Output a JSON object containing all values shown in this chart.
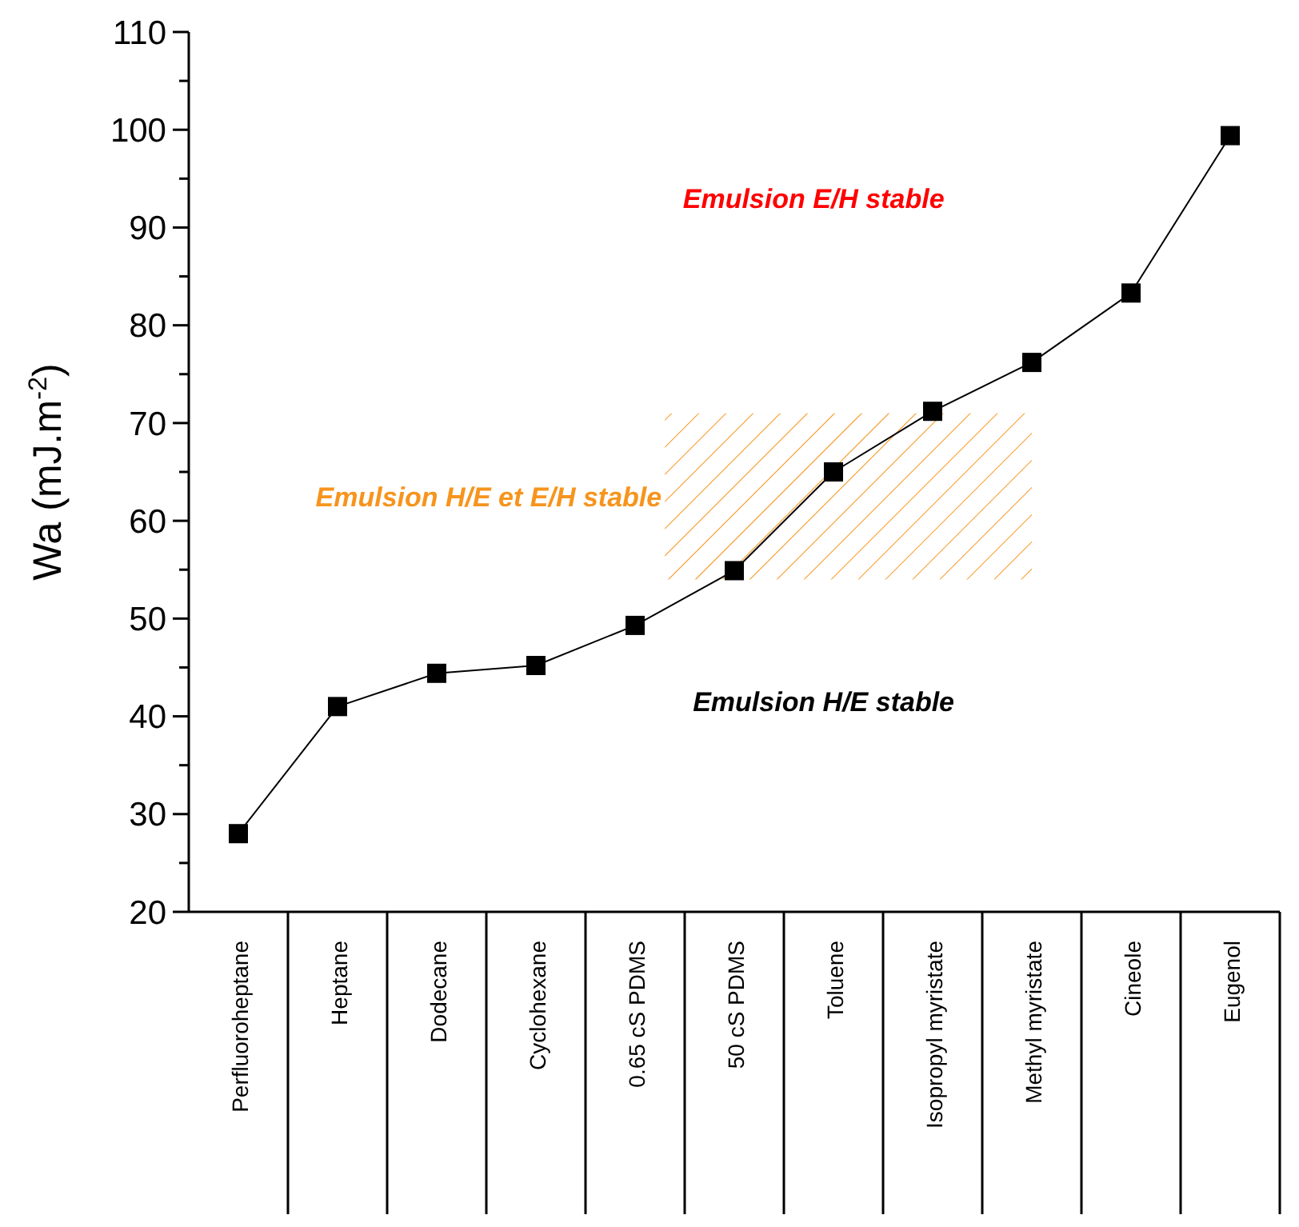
{
  "chart_data": {
    "type": "line",
    "ylabel": "Wa (mJ.m$^{-2}$)",
    "categories": [
      "Perfluoroheptane",
      "Heptane",
      "Dodecane",
      "Cyclohexane",
      "0.65 cS PDMS",
      "50 cS PDMS",
      "Toluene",
      "Isopropyl myristate",
      "Methyl myristate",
      "Cineole",
      "Eugenol"
    ],
    "series": [
      {
        "color": "#000000",
        "values": [
          28,
          41,
          44.4,
          45.2,
          49.3,
          54.9,
          65,
          71.2,
          76.2,
          83.3,
          99.4
        ]
      }
    ],
    "ylim": [
      20,
      110
    ],
    "yticks": [
      20,
      {
        "value": 25,
        "label": null
      },
      30,
      {
        "value": 35,
        "label": null
      },
      40,
      {
        "value": 45,
        "label": null
      },
      50,
      {
        "value": 55,
        "label": null
      },
      60,
      {
        "value": 65,
        "label": null
      },
      70,
      {
        "value": 75,
        "label": null
      },
      80,
      {
        "value": 85,
        "label": null
      },
      90,
      {
        "value": 95,
        "label": null
      },
      100,
      {
        "value": 105,
        "label": null
      },
      110
    ],
    "bands": [
      {
        "axis": "y",
        "from": 54,
        "to": 71,
        "label": "Emulsion H/E et E/H stable",
        "color": "#f7941d"
      }
    ],
    "annotations": [
      "Emulsion E/H stable",
      "Emulsion H/E stable"
    ],
    "marker": "square",
    "line_style": "solid"
  }
}
